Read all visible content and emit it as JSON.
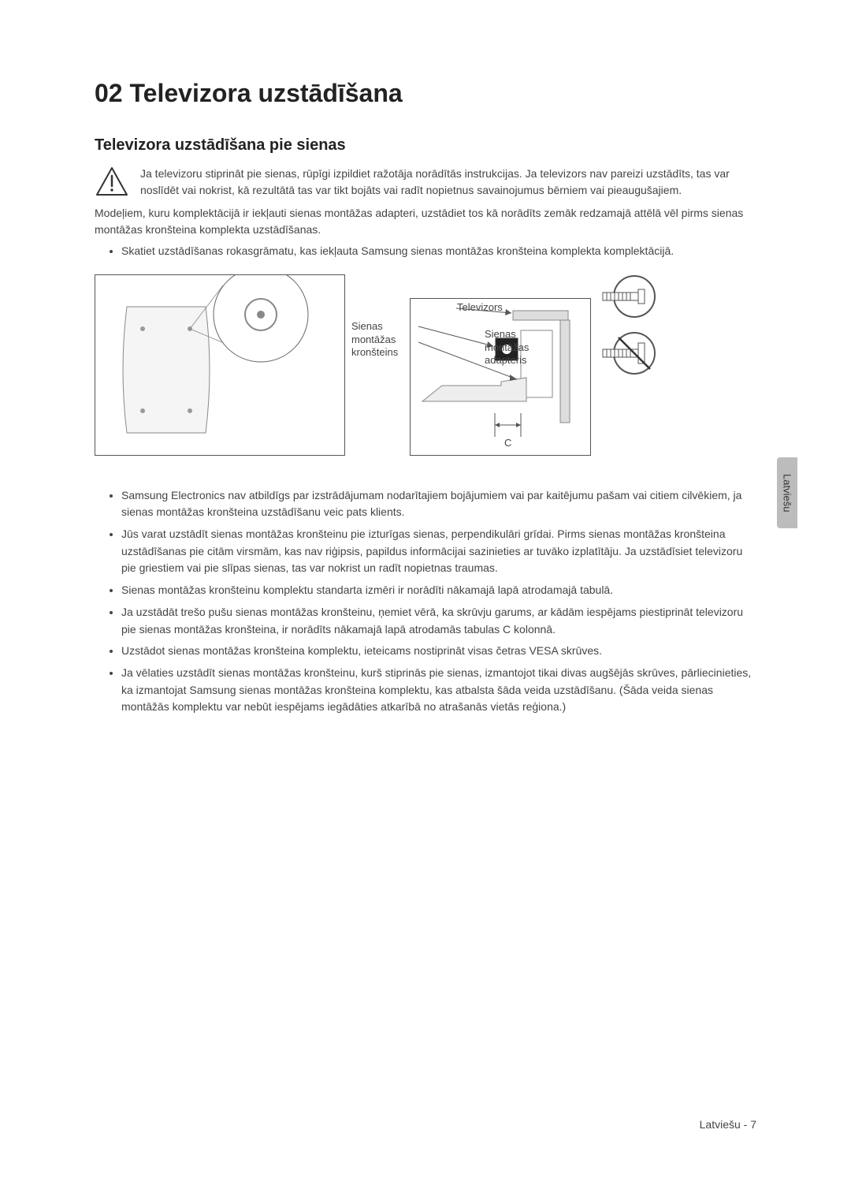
{
  "main_title": "02  Televizora uzstādīšana",
  "sub_title": "Televizora uzstādīšana pie sienas",
  "warning_text": "Ja televizoru stiprināt pie sienas, rūpīgi izpildiet ražotāja norādītās instrukcijas. Ja televizors nav pareizi uzstādīts, tas var noslīdēt vai nokrist, kā rezultātā tas var tikt bojāts vai radīt nopietnus savainojumus bērniem vai pieaugušajiem.",
  "para_1": "Modeļiem, kuru komplektācijā ir iekļauti sienas montāžas adapteri, uzstādiet tos kā norādīts zemāk redzamajā attēlā vēl pirms sienas montāžas kronšteina komplekta uzstādīšanas.",
  "bullet_a": "Skatiet uzstādīšanas rokasgrāmatu, kas iekļauta Samsung sienas montāžas kronšteina komplekta komplektācijā.",
  "diagram": {
    "label_bracket": "Sienas montāžas kronšteins",
    "label_tv": "Televizors",
    "label_adapter": "Sienas montāžas adapteris",
    "label_c": "C"
  },
  "bullets_main": [
    "Samsung Electronics nav atbildīgs par izstrādājumam nodarītajiem bojājumiem vai par kaitējumu pašam vai citiem cilvēkiem, ja sienas montāžas kronšteina uzstādīšanu veic pats klients.",
    "Jūs varat uzstādīt sienas montāžas kronšteinu pie izturīgas sienas, perpendikulāri grīdai. Pirms sienas montāžas kronšteina uzstādīšanas pie citām virsmām, kas nav riģipsis, papildus informācijai sazinieties ar tuvāko izplatītāju. Ja uzstādīsiet televizoru pie griestiem vai pie slīpas sienas, tas var nokrist un radīt nopietnas traumas.",
    "Sienas montāžas kronšteinu komplektu standarta izmēri ir norādīti nākamajā lapā atrodamajā tabulā.",
    "Ja uzstādāt trešo pušu sienas montāžas kronšteinu, ņemiet vērā, ka skrūvju garums, ar kādām iespējams piestiprināt televizoru pie sienas montāžas kronšteina, ir norādīts nākamajā lapā atrodamās tabulas C kolonnā.",
    "Uzstādot sienas montāžas kronšteina komplektu, ieteicams nostiprināt visas četras VESA skrūves.",
    "Ja vēlaties uzstādīt sienas montāžas kronšteinu, kurš stiprinās pie sienas, izmantojot tikai divas augšējās skrūves, pārliecinieties, ka izmantojat Samsung sienas montāžas kronšteina komplektu, kas atbalsta šāda veida uzstādīšanu. (Šāda veida sienas montāžās komplektu var nebūt iespējams iegādāties atkarībā no atrašanās vietās reģiona.)"
  ],
  "language_tab": "Latviešu",
  "page_footer": "Latviešu - 7"
}
